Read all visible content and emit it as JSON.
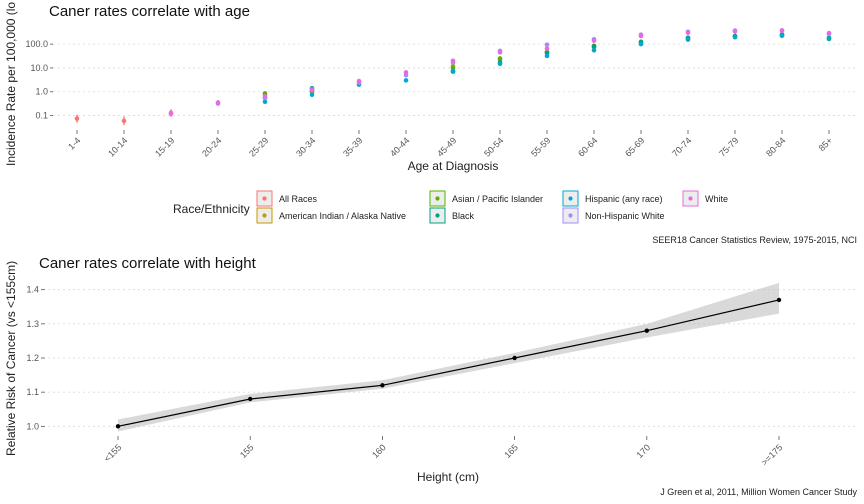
{
  "figure": {
    "caption_top": "SEER18 Cancer Statistics Review, 1975-2015, NCI",
    "caption_bottom": "J Green et al, 2011, Million Women Cancer Study"
  },
  "chart_data": [
    {
      "type": "scatter",
      "title": "Caner rates correlate with age",
      "xlabel": "Age at Diagnosis",
      "ylabel": "Incidence Rate per 100,000 (lo",
      "y_scale": "log",
      "ylim": [
        0.03,
        700
      ],
      "y_ticks": [
        {
          "value": 0.1,
          "label": "0.1"
        },
        {
          "value": 1,
          "label": "1.0"
        },
        {
          "value": 10,
          "label": "10.0"
        },
        {
          "value": 100,
          "label": "100.0"
        }
      ],
      "categories": [
        "1-4",
        "10-14",
        "15-19",
        "20-24",
        "25-29",
        "30-34",
        "35-39",
        "40-44",
        "45-49",
        "50-54",
        "55-59",
        "60-64",
        "65-69",
        "70-74",
        "75-79",
        "80-84",
        "85+"
      ],
      "grid": true,
      "legend": {
        "title": "Race/Ethnicity",
        "placement": "bottom"
      },
      "series": [
        {
          "name": "All Races",
          "color": "#f8766d",
          "values": [
            0.075,
            0.06,
            0.12,
            null,
            null,
            null,
            null,
            null,
            null,
            null,
            null,
            null,
            null,
            null,
            null,
            null,
            null
          ],
          "error": [
            [
              0.05,
              0.11
            ],
            [
              0.04,
              0.09
            ],
            [
              0.09,
              0.18
            ],
            null,
            null,
            null,
            null,
            null,
            null,
            null,
            null,
            null,
            null,
            null,
            null,
            null,
            null
          ]
        },
        {
          "name": "American Indian / Alaska Native",
          "color": "#c49a00",
          "values": [
            null,
            null,
            null,
            null,
            0.75,
            1.05,
            null,
            null,
            12.0,
            22.0,
            45.0,
            75.0,
            120.0,
            170.0,
            210.0,
            240.0,
            null
          ],
          "error": [
            null,
            null,
            null,
            null,
            [
              0.5,
              1.0
            ],
            null,
            null,
            null,
            [
              8,
              16
            ],
            null,
            null,
            null,
            null,
            null,
            null,
            null,
            null
          ]
        },
        {
          "name": "Asian / Pacific Islander",
          "color": "#53b400",
          "values": [
            null,
            null,
            null,
            null,
            0.85,
            1.0,
            null,
            null,
            10.0,
            25.0,
            48.0,
            85.0,
            120.0,
            165.0,
            205.0,
            230.0,
            165.0
          ],
          "error": null
        },
        {
          "name": "Black",
          "color": "#00a087",
          "values": [
            null,
            null,
            null,
            null,
            0.55,
            1.4,
            null,
            null,
            7.0,
            17.0,
            42.0,
            80.0,
            125.0,
            185.0,
            220.0,
            255.0,
            185.0
          ],
          "error": null
        },
        {
          "name": "Hispanic (any race)",
          "color": "#00a9d4",
          "values": [
            null,
            null,
            null,
            null,
            0.38,
            0.75,
            2.0,
            3.0,
            7.5,
            15.0,
            32.0,
            55.0,
            100.0,
            155.0,
            195.0,
            225.0,
            170.0
          ],
          "error": null
        },
        {
          "name": "Non-Hispanic White",
          "color": "#a58afe",
          "values": [
            null,
            null,
            null,
            0.32,
            0.55,
            1.25,
            2.4,
            5.0,
            17.0,
            52.0,
            95.0,
            160.0,
            250.0,
            330.0,
            370.0,
            380.0,
            270.0
          ],
          "error": null
        },
        {
          "name": "White",
          "color": "#e76bdb",
          "values": [
            null,
            null,
            0.13,
            0.35,
            0.65,
            1.15,
            2.8,
            6.5,
            20.0,
            45.0,
            65.0,
            140.0,
            220.0,
            300.0,
            345.0,
            370.0,
            290.0
          ],
          "error": [
            null,
            null,
            [
              0.09,
              0.18
            ],
            [
              0.26,
              0.45
            ],
            null,
            null,
            null,
            null,
            null,
            null,
            null,
            null,
            null,
            null,
            null,
            null,
            null
          ]
        }
      ]
    },
    {
      "type": "line",
      "title": "Caner rates correlate with height",
      "xlabel": "Height (cm)",
      "ylabel": "Relative Risk of Cancer (vs <155cm)",
      "ylim": [
        0.96,
        1.44
      ],
      "y_ticks": [
        {
          "value": 1.0,
          "label": "1.0"
        },
        {
          "value": 1.1,
          "label": "1.1"
        },
        {
          "value": 1.2,
          "label": "1.2"
        },
        {
          "value": 1.3,
          "label": "1.3"
        },
        {
          "value": 1.4,
          "label": "1.4"
        }
      ],
      "categories": [
        "<155",
        "155",
        "160",
        "165",
        "170",
        ">=175"
      ],
      "grid": true,
      "series": [
        {
          "values": [
            1.0,
            1.08,
            1.12,
            1.2,
            1.28,
            1.37
          ],
          "ci_low": [
            0.985,
            1.07,
            1.11,
            1.185,
            1.26,
            1.33
          ],
          "ci_high": [
            1.02,
            1.095,
            1.135,
            1.215,
            1.3,
            1.42
          ]
        }
      ]
    }
  ]
}
